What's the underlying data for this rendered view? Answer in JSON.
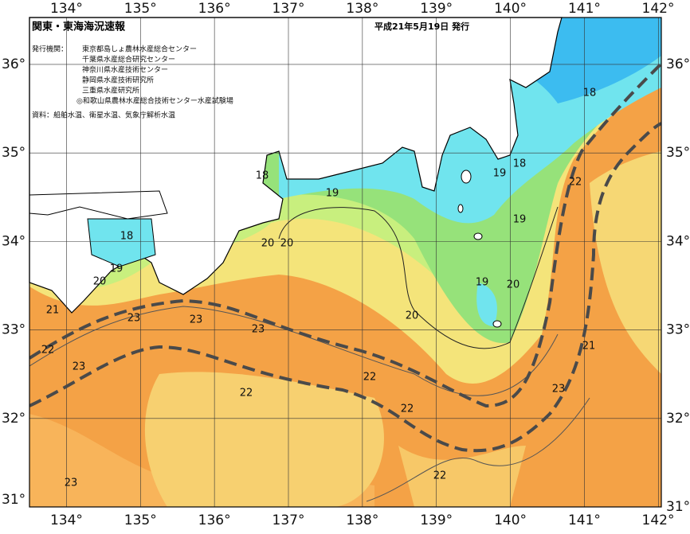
{
  "header": {
    "title": "関東・東海海況速報",
    "date": "平成21年5月19日 発行",
    "issuer_label": "発行機関：",
    "issuers": [
      "東京都島しょ農林水産総合センター",
      "千葉県水産総合研究センター",
      "神奈川県水産技術センター",
      "静岡県水産技術研究所",
      "三重県水産研究所",
      "◎和歌山県農林水産総合技術センター水産試験場"
    ],
    "source": "資料：船舶水温、衛星水温、気象庁解析水温"
  },
  "map": {
    "xlim": [
      133.5,
      142.04
    ],
    "ylim": [
      31,
      36.53
    ],
    "xticks": [
      {
        "value": 134,
        "label": "134°"
      },
      {
        "value": 135,
        "label": "135°"
      },
      {
        "value": 136,
        "label": "136°"
      },
      {
        "value": 137,
        "label": "137°"
      },
      {
        "value": 138,
        "label": "138°"
      },
      {
        "value": 139,
        "label": "139°"
      },
      {
        "value": 140,
        "label": "140°"
      },
      {
        "value": 141,
        "label": "141°"
      },
      {
        "value": 142,
        "label": "142°"
      }
    ],
    "yticks": [
      {
        "value": 31,
        "label": "31°"
      },
      {
        "value": 32,
        "label": "32°"
      },
      {
        "value": 33,
        "label": "33°"
      },
      {
        "value": 34,
        "label": "34°"
      },
      {
        "value": 35,
        "label": "35°"
      },
      {
        "value": 36,
        "label": "36°"
      }
    ],
    "contour_labels": [
      "18",
      "18",
      "19",
      "18",
      "19",
      "19",
      "18",
      "20",
      "20",
      "19",
      "20",
      "19",
      "20",
      "21",
      "20",
      "23",
      "23",
      "23",
      "22",
      "21",
      "22",
      "23",
      "22",
      "23",
      "22",
      "22",
      "22",
      "23"
    ]
  }
}
